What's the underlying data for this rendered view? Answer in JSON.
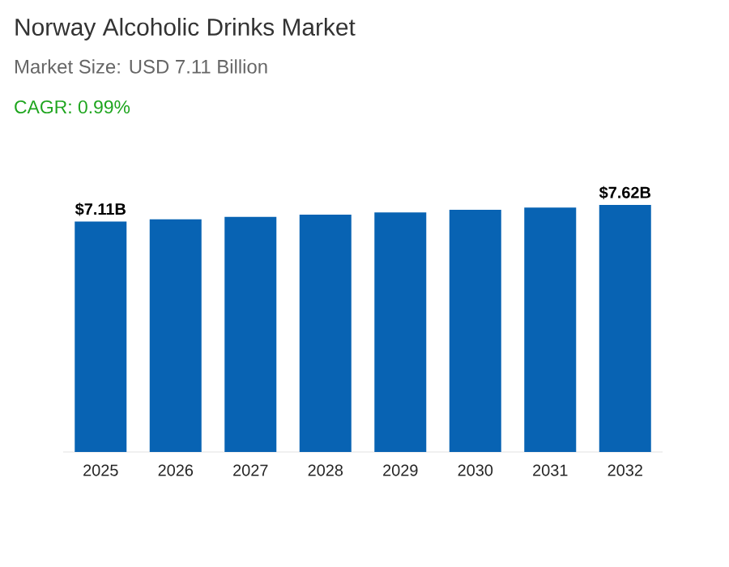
{
  "chart_data": {
    "type": "bar",
    "title": "Norway Alcoholic Drinks Market",
    "subtitle": "Market Size: USD 7.11 Billion",
    "annotations": [
      "CAGR: 0.99%"
    ],
    "categories": [
      "2025",
      "2026",
      "2027",
      "2028",
      "2029",
      "2030",
      "2031",
      "2032"
    ],
    "values": [
      7.11,
      7.18,
      7.25,
      7.32,
      7.39,
      7.47,
      7.54,
      7.62
    ],
    "value_labels": [
      "$7.11B",
      null,
      null,
      null,
      null,
      null,
      null,
      "$7.62B"
    ],
    "color": "#0863b3",
    "tick_labels": "x"
  }
}
